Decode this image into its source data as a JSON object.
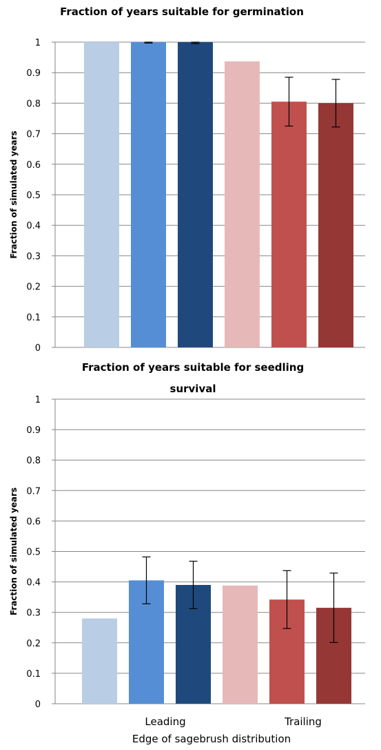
{
  "colors": {
    "leading_light": "#b9cde5",
    "leading_mid": "#558ed5",
    "leading_dark": "#1f497d",
    "trailing_light": "#e6b9b8",
    "trailing_mid": "#c0504d",
    "trailing_dark": "#953735",
    "grid": "#868686",
    "error_bar": "#000000"
  },
  "chart_data": [
    {
      "type": "bar",
      "title_lines": [
        "Fraction of years suitable for germination"
      ],
      "ylabel": "Fraction of simulated years",
      "ylim": [
        0,
        1
      ],
      "yticks": [
        "0",
        "0.1",
        "0.2",
        "0.3",
        "0.4",
        "0.5",
        "0.6",
        "0.7",
        "0.8",
        "0.9",
        "1"
      ],
      "grid": true,
      "bars": [
        {
          "value": 1.0,
          "error": null,
          "color": "#b9cde5"
        },
        {
          "value": 1.0,
          "error": 0.003,
          "color": "#558ed5"
        },
        {
          "value": 1.0,
          "error": 0.005,
          "color": "#1f497d"
        },
        {
          "value": 0.937,
          "error": null,
          "color": "#e6b9b8"
        },
        {
          "value": 0.805,
          "error": 0.08,
          "color": "#c0504d"
        },
        {
          "value": 0.8,
          "error": 0.078,
          "color": "#953735"
        }
      ]
    },
    {
      "type": "bar",
      "title_lines": [
        "Fraction of years suitable for seedling",
        "survival"
      ],
      "ylabel": "Fraction of simulated years",
      "xlabel": "Edge of sagebrush distribution",
      "categories": [
        "Leading",
        "Trailing"
      ],
      "ylim": [
        0,
        1
      ],
      "yticks": [
        "0",
        "0.1",
        "0.2",
        "0.3",
        "0.4",
        "0.5",
        "0.6",
        "0.7",
        "0.8",
        "0.9",
        "1"
      ],
      "grid": true,
      "bars": [
        {
          "value": 0.28,
          "error": null,
          "color": "#b9cde5"
        },
        {
          "value": 0.405,
          "error": 0.077,
          "color": "#558ed5"
        },
        {
          "value": 0.39,
          "error": 0.078,
          "color": "#1f497d"
        },
        {
          "value": 0.388,
          "error": null,
          "color": "#e6b9b8"
        },
        {
          "value": 0.342,
          "error": 0.095,
          "color": "#c0504d"
        },
        {
          "value": 0.315,
          "error": 0.114,
          "color": "#953735"
        }
      ]
    }
  ]
}
